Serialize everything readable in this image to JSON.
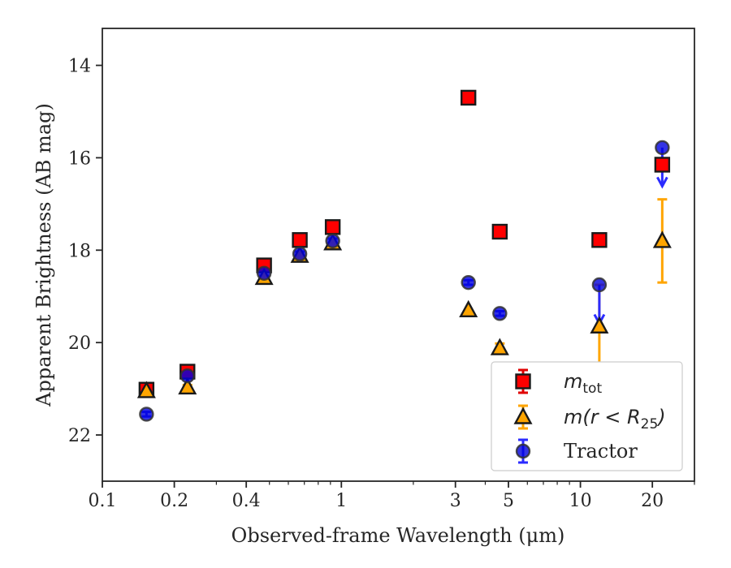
{
  "chart_data": {
    "type": "scatter",
    "xlabel": "Observed-frame Wavelength (μm)",
    "ylabel": "Apparent Brightness (AB mag)",
    "xscale": "log",
    "xlim": [
      0.1,
      30
    ],
    "ylim": [
      23,
      13.2
    ],
    "y_inverted": true,
    "grid": false,
    "legend_position": "lower-right",
    "x_ticks": [
      {
        "value": 0.1,
        "label": "0.1"
      },
      {
        "value": 0.2,
        "label": "0.2"
      },
      {
        "value": 0.4,
        "label": "0.4"
      },
      {
        "value": 1,
        "label": "1"
      },
      {
        "value": 3,
        "label": "3"
      },
      {
        "value": 5,
        "label": "5"
      },
      {
        "value": 10,
        "label": "10"
      },
      {
        "value": 20,
        "label": "20"
      }
    ],
    "y_ticks": [
      {
        "value": 14,
        "label": "14"
      },
      {
        "value": 16,
        "label": "16"
      },
      {
        "value": 18,
        "label": "18"
      },
      {
        "value": 20,
        "label": "20"
      },
      {
        "value": 22,
        "label": "22"
      }
    ],
    "series": [
      {
        "name": "m_tot",
        "legend_main": "m",
        "legend_sub": "tot",
        "marker": "square",
        "color": "#ff0000",
        "errcolor": "#e00000",
        "points": [
          {
            "x": 0.153,
            "y": 21.02,
            "err": 0.05
          },
          {
            "x": 0.227,
            "y": 20.63,
            "err": 0.05
          },
          {
            "x": 0.475,
            "y": 18.33,
            "err": 0
          },
          {
            "x": 0.67,
            "y": 17.78,
            "err": 0
          },
          {
            "x": 0.92,
            "y": 17.5,
            "err": 0
          },
          {
            "x": 3.4,
            "y": 14.7,
            "err": 0
          },
          {
            "x": 4.6,
            "y": 17.6,
            "err": 0
          },
          {
            "x": 12.0,
            "y": 17.78,
            "err": 0
          },
          {
            "x": 22.0,
            "y": 16.15,
            "err": 0
          }
        ]
      },
      {
        "name": "m(r < R_25)",
        "legend_main": "m(r < R",
        "legend_sub": "25",
        "legend_end": ")",
        "marker": "triangle",
        "color": "#ffa500",
        "errcolor": "#ffa500",
        "points": [
          {
            "x": 0.153,
            "y": 21.05,
            "err": 0.05
          },
          {
            "x": 0.227,
            "y": 20.97,
            "err": 0.05
          },
          {
            "x": 0.475,
            "y": 18.6,
            "err": 0
          },
          {
            "x": 0.67,
            "y": 18.12,
            "err": 0
          },
          {
            "x": 0.92,
            "y": 17.85,
            "err": 0
          },
          {
            "x": 3.4,
            "y": 19.3,
            "err": 0
          },
          {
            "x": 4.6,
            "y": 20.12,
            "err": 0.1
          },
          {
            "x": 12.0,
            "y": 19.65,
            "err": 0.9
          },
          {
            "x": 22.0,
            "y": 17.8,
            "err": 0.9
          }
        ]
      },
      {
        "name": "Tractor",
        "legend_main": "Tractor",
        "marker": "circle",
        "color": "#0000dd",
        "errcolor": "#2b2bff",
        "points": [
          {
            "x": 0.153,
            "y": 21.55,
            "err": 0.05
          },
          {
            "x": 0.227,
            "y": 20.72,
            "err": 0.05
          },
          {
            "x": 0.475,
            "y": 18.5,
            "err": 0.05
          },
          {
            "x": 0.67,
            "y": 18.08,
            "err": 0.05
          },
          {
            "x": 0.92,
            "y": 17.8,
            "err": 0.05
          },
          {
            "x": 3.4,
            "y": 18.7,
            "err": 0.05
          },
          {
            "x": 4.6,
            "y": 19.37,
            "err": 0.05
          },
          {
            "x": 12.0,
            "y": 18.75,
            "err_low": 0.8
          },
          {
            "x": 22.0,
            "y": 15.78,
            "err_low": 0.8
          }
        ]
      }
    ]
  }
}
